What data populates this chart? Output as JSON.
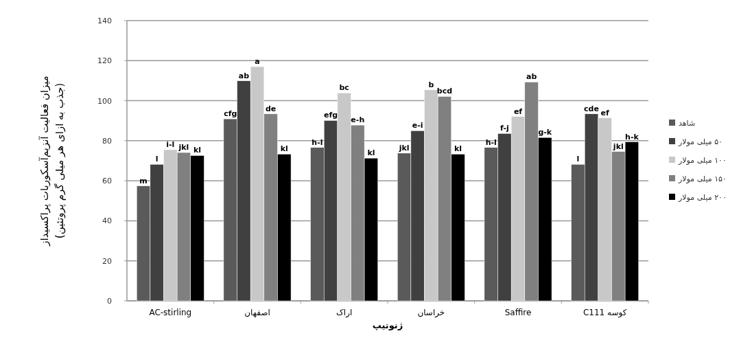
{
  "chart_data": {
    "type": "bar",
    "xlabel": "ژنوتیپ",
    "ylabel": "میزان فعالیت آنزیم‌آسکوربات پراکسیداز\n(جذب به ازای هر میلی گرم پروتئین)",
    "categories": [
      "AC-stirling",
      "اصفهان",
      "اراک",
      "خراسان",
      "Saffire",
      "کوسه C111"
    ],
    "ylim": [
      0,
      140
    ],
    "yticks": [
      0,
      20,
      40,
      60,
      80,
      100,
      120,
      140
    ],
    "grid": "y",
    "legend": "right",
    "series": [
      {
        "name": "شاهد",
        "color": "#5a5a5a",
        "values": [
          57.4,
          90.9,
          76.6,
          73.8,
          76.6,
          68.2
        ],
        "value_labels": [
          "m",
          "cfg",
          "h-l",
          "jkl",
          "h-l",
          "l"
        ]
      },
      {
        "name": "۵۰ میلی مولار",
        "color": "#404040",
        "values": [
          68.2,
          109.9,
          90.1,
          85.0,
          83.6,
          93.4
        ],
        "value_labels": [
          "l",
          "ab",
          "efg",
          "e-i",
          "f-j",
          "cde"
        ]
      },
      {
        "name": "۱۰۰ میلی مولار",
        "color": "#c8c8c8",
        "values": [
          75.5,
          117.0,
          103.8,
          105.4,
          92.1,
          91.4
        ],
        "value_labels": [
          "i-l",
          "a",
          "bc",
          "b",
          "ef",
          "ef"
        ]
      },
      {
        "name": "۱۵۰ میلی مولار",
        "color": "#808080",
        "values": [
          74.1,
          93.4,
          87.8,
          102.1,
          109.3,
          74.6
        ],
        "value_labels": [
          "jkl",
          "de",
          "e-h",
          "bcd",
          "ab",
          "jkl"
        ]
      },
      {
        "name": "۲۰۰ میلی مولار",
        "color": "#000000",
        "values": [
          72.6,
          73.3,
          71.3,
          73.3,
          81.6,
          79.4
        ],
        "value_labels": [
          "kl",
          "kl",
          "kl",
          "kl",
          "g-k",
          "h-k"
        ]
      }
    ]
  }
}
